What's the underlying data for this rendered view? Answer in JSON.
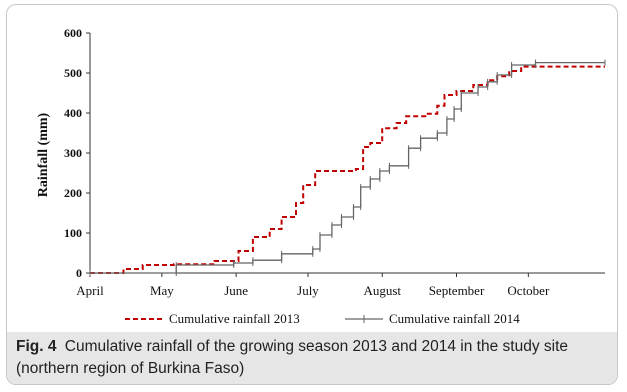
{
  "chart_data": {
    "type": "line",
    "ylabel": "Rainfall  (mm)",
    "xlabel": "",
    "ylim": [
      0,
      600
    ],
    "yticks": [
      0,
      100,
      200,
      300,
      400,
      500,
      600
    ],
    "xlim": [
      0,
      215
    ],
    "months": [
      {
        "label": "April",
        "day": 0
      },
      {
        "label": "May",
        "day": 30
      },
      {
        "label": "June",
        "day": 61
      },
      {
        "label": "July",
        "day": 91
      },
      {
        "label": "August",
        "day": 122
      },
      {
        "label": "September",
        "day": 153
      },
      {
        "label": "October",
        "day": 183
      }
    ],
    "series": [
      {
        "name": "Cumulative rainfall 2013",
        "color": "#c00000",
        "style": "dashed",
        "points": [
          [
            0,
            0
          ],
          [
            14,
            0
          ],
          [
            14,
            10
          ],
          [
            22,
            10
          ],
          [
            22,
            20
          ],
          [
            35,
            20
          ],
          [
            35,
            22
          ],
          [
            52,
            22
          ],
          [
            52,
            30
          ],
          [
            62,
            30
          ],
          [
            62,
            55
          ],
          [
            68,
            55
          ],
          [
            68,
            90
          ],
          [
            75,
            90
          ],
          [
            75,
            110
          ],
          [
            80,
            110
          ],
          [
            80,
            140
          ],
          [
            86,
            140
          ],
          [
            86,
            175
          ],
          [
            89,
            175
          ],
          [
            89,
            220
          ],
          [
            94,
            220
          ],
          [
            94,
            255
          ],
          [
            111,
            255
          ],
          [
            111,
            260
          ],
          [
            114,
            260
          ],
          [
            114,
            315
          ],
          [
            117,
            315
          ],
          [
            117,
            325
          ],
          [
            122,
            325
          ],
          [
            122,
            362
          ],
          [
            128,
            362
          ],
          [
            128,
            375
          ],
          [
            132,
            375
          ],
          [
            132,
            392
          ],
          [
            140,
            392
          ],
          [
            140,
            398
          ],
          [
            145,
            398
          ],
          [
            145,
            418
          ],
          [
            148,
            418
          ],
          [
            148,
            445
          ],
          [
            153,
            445
          ],
          [
            153,
            455
          ],
          [
            160,
            455
          ],
          [
            160,
            470
          ],
          [
            166,
            470
          ],
          [
            166,
            482
          ],
          [
            170,
            482
          ],
          [
            170,
            492
          ],
          [
            175,
            492
          ],
          [
            175,
            505
          ],
          [
            180,
            505
          ],
          [
            180,
            516
          ],
          [
            215,
            516
          ]
        ]
      },
      {
        "name": "Cumulative rainfall 2014",
        "color": "#666666",
        "style": "solid",
        "points": [
          [
            0,
            0
          ],
          [
            36,
            0
          ],
          [
            36,
            20
          ],
          [
            60,
            20
          ],
          [
            60,
            25
          ],
          [
            68,
            25
          ],
          [
            68,
            32
          ],
          [
            80,
            32
          ],
          [
            80,
            48
          ],
          [
            93,
            48
          ],
          [
            93,
            60
          ],
          [
            96,
            60
          ],
          [
            96,
            95
          ],
          [
            101,
            95
          ],
          [
            101,
            120
          ],
          [
            105,
            120
          ],
          [
            105,
            140
          ],
          [
            110,
            140
          ],
          [
            110,
            165
          ],
          [
            113,
            165
          ],
          [
            113,
            215
          ],
          [
            117,
            215
          ],
          [
            117,
            235
          ],
          [
            121,
            235
          ],
          [
            121,
            255
          ],
          [
            125,
            255
          ],
          [
            125,
            268
          ],
          [
            133,
            268
          ],
          [
            133,
            312
          ],
          [
            138,
            312
          ],
          [
            138,
            337
          ],
          [
            145,
            337
          ],
          [
            145,
            350
          ],
          [
            149,
            350
          ],
          [
            149,
            385
          ],
          [
            152,
            385
          ],
          [
            152,
            410
          ],
          [
            155,
            410
          ],
          [
            155,
            450
          ],
          [
            162,
            450
          ],
          [
            162,
            465
          ],
          [
            166,
            465
          ],
          [
            166,
            478
          ],
          [
            170,
            478
          ],
          [
            170,
            495
          ],
          [
            176,
            495
          ],
          [
            176,
            520
          ],
          [
            186,
            520
          ],
          [
            186,
            526
          ],
          [
            215,
            526
          ]
        ]
      }
    ]
  },
  "caption": {
    "label": "Fig. 4",
    "text": "Cumulative rainfall of the growing season 2013 and 2014 in the study site (northern region of Burkina Faso)"
  }
}
